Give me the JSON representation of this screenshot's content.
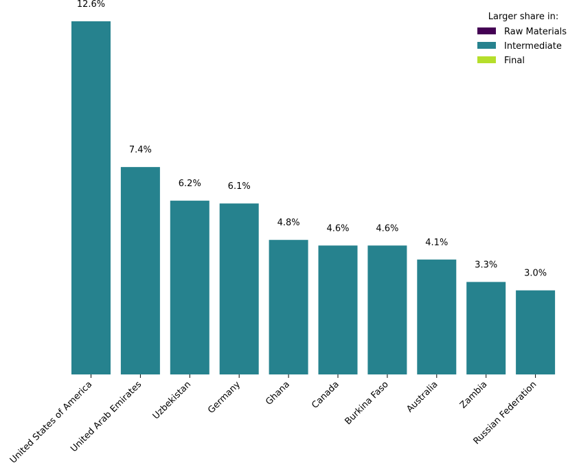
{
  "chart_data": {
    "type": "bar",
    "categories": [
      "United States of America",
      "United Arab Emirates",
      "Uzbekistan",
      "Germany",
      "Ghana",
      "Canada",
      "Burkina Faso",
      "Australia",
      "Zambia",
      "Russian Federation"
    ],
    "values": [
      12.6,
      7.4,
      6.2,
      6.1,
      4.8,
      4.6,
      4.6,
      4.1,
      3.3,
      3.0
    ],
    "value_labels": [
      "12.6%",
      "7.4%",
      "6.2%",
      "6.1%",
      "4.8%",
      "4.6%",
      "4.6%",
      "4.1%",
      "3.3%",
      "3.0%"
    ],
    "bar_colors": [
      "#26828e",
      "#26828e",
      "#26828e",
      "#26828e",
      "#26828e",
      "#26828e",
      "#26828e",
      "#26828e",
      "#26828e",
      "#26828e"
    ],
    "unit": "%",
    "ylim": [
      0,
      12.6
    ],
    "grid": false,
    "legend": {
      "title": "Larger share in:",
      "placement": "top-right",
      "entries": [
        {
          "label": "Raw Materials",
          "color": "#440154"
        },
        {
          "label": "Intermediate",
          "color": "#26828e"
        },
        {
          "label": "Final",
          "color": "#b5de2b"
        }
      ]
    }
  }
}
